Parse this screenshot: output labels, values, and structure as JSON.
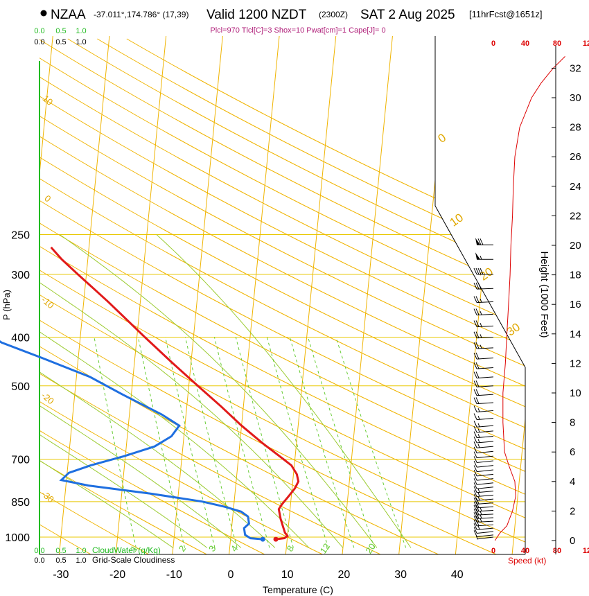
{
  "header": {
    "station": "NZAA",
    "coords": "-37.011°,174.786° (17,39)",
    "valid": "Valid 1200 NZDT",
    "zulu": "(2300Z)",
    "date": "SAT 2 Aug 2025",
    "fcst": "[11hrFcst@1651z]",
    "indices": "Plcl=970 Tlcl[C]=3 Shox=10 Pwat[cm]=1 Cape[J]= 0"
  },
  "colors": {
    "temp": "#e11a1a",
    "dew": "#1f6fe0",
    "isotherm": "#f0b400",
    "isobar": "#e8c800",
    "dry_adiabat": "#f0b400",
    "moist_adiabat": "#9ccc33",
    "mixing_ratio": "#66cc33",
    "speed": "#dd0000",
    "cloud": "#22bb22"
  },
  "chart_data": {
    "type": "line",
    "title": "NZAA Skew-T sounding",
    "xlabel": "Temperature (C)",
    "ylabel": "P (hPa)",
    "y2label": "Height (1000 Feet)",
    "x_ticks": [
      "-30",
      "-20",
      "-10",
      "0",
      "10",
      "20",
      "30",
      "40"
    ],
    "p_ticks": [
      "250",
      "300",
      "400",
      "500",
      "700",
      "850",
      "1000"
    ],
    "height_ticks": [
      "0",
      "2",
      "4",
      "6",
      "8",
      "10",
      "12",
      "14",
      "16",
      "18",
      "20",
      "22",
      "24",
      "26",
      "28",
      "30",
      "32"
    ],
    "top_scale_green": [
      "0.0",
      "0.5",
      "1.0"
    ],
    "top_scale_black": [
      "0.0",
      "0.5",
      "1.0"
    ],
    "bottom_scale_green": [
      "0.0",
      "0.5",
      "1.0"
    ],
    "bottom_scale_black": [
      "0.0",
      "0.5",
      "1.0"
    ],
    "cloudwater_label": "CloudWater (g/Kg)",
    "cloudiness_label": "Grid-Scale Cloudiness",
    "speed_ticks_top": [
      "0",
      "40",
      "80",
      "120"
    ],
    "speed_ticks_bottom": [
      "0",
      "40",
      "80",
      "120"
    ],
    "speed_label": "Speed (kt)",
    "dry_adiabat_labels": [
      "10",
      "0",
      "-10",
      "-20",
      "-30",
      "0",
      "10",
      "20",
      "30"
    ],
    "mixing_ratio_labels": [
      "1",
      "2",
      "3",
      "4",
      "8",
      "12",
      "20"
    ],
    "temperature_profile": [
      {
        "p": 1010,
        "t": 8.0
      },
      {
        "p": 1005,
        "t": 9.5
      },
      {
        "p": 995,
        "t": 10.0
      },
      {
        "p": 980,
        "t": 9.5
      },
      {
        "p": 950,
        "t": 9.0
      },
      {
        "p": 920,
        "t": 8.5
      },
      {
        "p": 880,
        "t": 8.0
      },
      {
        "p": 860,
        "t": 8.5
      },
      {
        "p": 830,
        "t": 9.5
      },
      {
        "p": 800,
        "t": 10.5
      },
      {
        "p": 775,
        "t": 11.0
      },
      {
        "p": 750,
        "t": 10.6
      },
      {
        "p": 720,
        "t": 9.5
      },
      {
        "p": 700,
        "t": 8.0
      },
      {
        "p": 650,
        "t": 4.0
      },
      {
        "p": 600,
        "t": 0.0
      },
      {
        "p": 550,
        "t": -3.9
      },
      {
        "p": 500,
        "t": -8.4
      },
      {
        "p": 450,
        "t": -13.3
      },
      {
        "p": 420,
        "t": -16.4
      },
      {
        "p": 400,
        "t": -18.6
      },
      {
        "p": 370,
        "t": -22.0
      },
      {
        "p": 340,
        "t": -25.7
      },
      {
        "p": 320,
        "t": -28.5
      },
      {
        "p": 300,
        "t": -31.5
      },
      {
        "p": 280,
        "t": -34.6
      },
      {
        "p": 265,
        "t": -36.7
      }
    ],
    "dewpoint_profile": [
      {
        "p": 1010,
        "t": 5.7
      },
      {
        "p": 1005,
        "t": 3.5
      },
      {
        "p": 990,
        "t": 2.5
      },
      {
        "p": 960,
        "t": 2.2
      },
      {
        "p": 940,
        "t": 3.0
      },
      {
        "p": 910,
        "t": 2.7
      },
      {
        "p": 890,
        "t": 1.4
      },
      {
        "p": 870,
        "t": -1.6
      },
      {
        "p": 850,
        "t": -5.6
      },
      {
        "p": 820,
        "t": -14.7
      },
      {
        "p": 790,
        "t": -25.9
      },
      {
        "p": 770,
        "t": -30.9
      },
      {
        "p": 745,
        "t": -29.7
      },
      {
        "p": 720,
        "t": -26.0
      },
      {
        "p": 690,
        "t": -20.2
      },
      {
        "p": 660,
        "t": -15.0
      },
      {
        "p": 630,
        "t": -12.2
      },
      {
        "p": 600,
        "t": -11.0
      },
      {
        "p": 570,
        "t": -14.3
      },
      {
        "p": 520,
        "t": -21.6
      },
      {
        "p": 480,
        "t": -27.6
      },
      {
        "p": 440,
        "t": -36.4
      },
      {
        "p": 410,
        "t": -43.8
      },
      {
        "p": 390,
        "t": -46.9
      },
      {
        "p": 360,
        "t": -51.3
      },
      {
        "p": 330,
        "t": -55.2
      },
      {
        "p": 300,
        "t": -58.0
      },
      {
        "p": 285,
        "t": -58.9
      },
      {
        "p": 265,
        "t": -58.5
      }
    ],
    "wind_speed_profile": [
      {
        "h": 0,
        "s": 2
      },
      {
        "h": 0.5,
        "s": 8
      },
      {
        "h": 1,
        "s": 17
      },
      {
        "h": 2,
        "s": 24
      },
      {
        "h": 3,
        "s": 28
      },
      {
        "h": 4,
        "s": 27
      },
      {
        "h": 5,
        "s": 20
      },
      {
        "h": 6,
        "s": 14
      },
      {
        "h": 8,
        "s": 12
      },
      {
        "h": 10,
        "s": 12
      },
      {
        "h": 12,
        "s": 15
      },
      {
        "h": 14,
        "s": 17
      },
      {
        "h": 16,
        "s": 19
      },
      {
        "h": 18,
        "s": 21
      },
      {
        "h": 20,
        "s": 22
      },
      {
        "h": 22,
        "s": 24
      },
      {
        "h": 24,
        "s": 25
      },
      {
        "h": 26,
        "s": 27
      },
      {
        "h": 28,
        "s": 33
      },
      {
        "h": 30,
        "s": 48
      },
      {
        "h": 31,
        "s": 60
      },
      {
        "h": 32,
        "s": 75
      },
      {
        "h": 32.8,
        "s": 90
      }
    ],
    "wind_barbs": [
      {
        "p": 1000,
        "kt": 5
      },
      {
        "p": 990,
        "kt": 10
      },
      {
        "p": 975,
        "kt": 10
      },
      {
        "p": 960,
        "kt": 15
      },
      {
        "p": 945,
        "kt": 20
      },
      {
        "p": 930,
        "kt": 25
      },
      {
        "p": 915,
        "kt": 25
      },
      {
        "p": 900,
        "kt": 25
      },
      {
        "p": 885,
        "kt": 25
      },
      {
        "p": 870,
        "kt": 20
      },
      {
        "p": 855,
        "kt": 20
      },
      {
        "p": 840,
        "kt": 15
      },
      {
        "p": 825,
        "kt": 15
      },
      {
        "p": 810,
        "kt": 15
      },
      {
        "p": 795,
        "kt": 10
      },
      {
        "p": 780,
        "kt": 10
      },
      {
        "p": 765,
        "kt": 10
      },
      {
        "p": 750,
        "kt": 10
      },
      {
        "p": 735,
        "kt": 10
      },
      {
        "p": 720,
        "kt": 10
      },
      {
        "p": 705,
        "kt": 10
      },
      {
        "p": 690,
        "kt": 10
      },
      {
        "p": 675,
        "kt": 10
      },
      {
        "p": 660,
        "kt": 15
      },
      {
        "p": 645,
        "kt": 15
      },
      {
        "p": 630,
        "kt": 15
      },
      {
        "p": 615,
        "kt": 15
      },
      {
        "p": 600,
        "kt": 15
      },
      {
        "p": 580,
        "kt": 15
      },
      {
        "p": 560,
        "kt": 15
      },
      {
        "p": 540,
        "kt": 20
      },
      {
        "p": 520,
        "kt": 20
      },
      {
        "p": 500,
        "kt": 20
      },
      {
        "p": 480,
        "kt": 20
      },
      {
        "p": 460,
        "kt": 20
      },
      {
        "p": 440,
        "kt": 20
      },
      {
        "p": 420,
        "kt": 25
      },
      {
        "p": 400,
        "kt": 25
      },
      {
        "p": 380,
        "kt": 25
      },
      {
        "p": 360,
        "kt": 25
      },
      {
        "p": 340,
        "kt": 25
      },
      {
        "p": 320,
        "kt": 30
      },
      {
        "p": 300,
        "kt": 40
      },
      {
        "p": 280,
        "kt": 55
      },
      {
        "p": 262,
        "kt": 70
      }
    ]
  }
}
